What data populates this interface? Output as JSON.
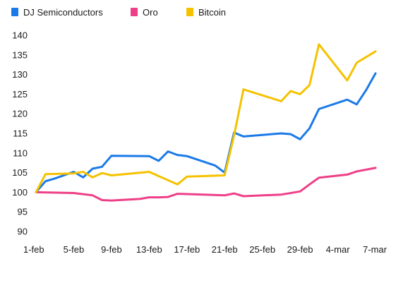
{
  "chart_data": {
    "type": "line",
    "grid": false,
    "legend_position": "top-left",
    "ylim": [
      90,
      140
    ],
    "y_ticks": [
      90,
      95,
      100,
      105,
      110,
      115,
      120,
      125,
      130,
      135,
      140
    ],
    "x_ticks": [
      "1-feb",
      "5-feb",
      "9-feb",
      "13-feb",
      "17-feb",
      "21-feb",
      "25-feb",
      "29-feb",
      "4-mar",
      "7-mar"
    ],
    "series": [
      {
        "name": "DJ Semiconductors",
        "color": "#1a7ae8",
        "points": [
          [
            "1-feb",
            100.0
          ],
          [
            "2-feb",
            102.8
          ],
          [
            "3-feb",
            103.5
          ],
          [
            "5-feb",
            105.2
          ],
          [
            "6-feb",
            103.8
          ],
          [
            "7-feb",
            106.0
          ],
          [
            "8-feb",
            106.5
          ],
          [
            "9-feb",
            109.3
          ],
          [
            "13-feb",
            109.2
          ],
          [
            "14-feb",
            108.0
          ],
          [
            "15-feb",
            110.4
          ],
          [
            "16-feb",
            109.5
          ],
          [
            "17-feb",
            109.2
          ],
          [
            "20-feb",
            106.8
          ],
          [
            "21-feb",
            105.0
          ],
          [
            "22-feb",
            115.2
          ],
          [
            "23-feb",
            114.2
          ],
          [
            "27-feb",
            115.0
          ],
          [
            "28-feb",
            114.8
          ],
          [
            "29-feb",
            113.5
          ],
          [
            "1-mar",
            116.3
          ],
          [
            "2-mar",
            121.2
          ],
          [
            "5-mar",
            123.6
          ],
          [
            "6-mar",
            122.4
          ],
          [
            "7-mar",
            126.0
          ],
          [
            "8-mar",
            130.3
          ]
        ]
      },
      {
        "name": "Oro",
        "color": "#ee3f88",
        "points": [
          [
            "1-feb",
            100.0
          ],
          [
            "5-feb",
            99.8
          ],
          [
            "7-feb",
            99.2
          ],
          [
            "8-feb",
            98.0
          ],
          [
            "9-feb",
            97.9
          ],
          [
            "12-feb",
            98.3
          ],
          [
            "13-feb",
            98.7
          ],
          [
            "14-feb",
            98.7
          ],
          [
            "15-feb",
            98.8
          ],
          [
            "16-feb",
            99.6
          ],
          [
            "21-feb",
            99.2
          ],
          [
            "22-feb",
            99.7
          ],
          [
            "23-feb",
            99.0
          ],
          [
            "27-feb",
            99.4
          ],
          [
            "29-feb",
            100.2
          ],
          [
            "1-mar",
            102.0
          ],
          [
            "2-mar",
            103.7
          ],
          [
            "5-mar",
            104.5
          ],
          [
            "6-mar",
            105.3
          ],
          [
            "8-mar",
            106.2
          ]
        ]
      },
      {
        "name": "Bitcoin",
        "color": "#f5c200",
        "points": [
          [
            "1-feb",
            100.0
          ],
          [
            "2-feb",
            104.6
          ],
          [
            "5-feb",
            104.8
          ],
          [
            "6-feb",
            105.2
          ],
          [
            "7-feb",
            103.8
          ],
          [
            "8-feb",
            104.9
          ],
          [
            "9-feb",
            104.3
          ],
          [
            "13-feb",
            105.2
          ],
          [
            "16-feb",
            102.0
          ],
          [
            "17-feb",
            104.0
          ],
          [
            "21-feb",
            104.3
          ],
          [
            "22-feb",
            114.5
          ],
          [
            "23-feb",
            126.2
          ],
          [
            "27-feb",
            123.2
          ],
          [
            "28-feb",
            125.8
          ],
          [
            "29-feb",
            125.0
          ],
          [
            "1-mar",
            127.3
          ],
          [
            "2-mar",
            137.7
          ],
          [
            "5-mar",
            128.5
          ],
          [
            "6-mar",
            133.0
          ],
          [
            "8-mar",
            135.9
          ]
        ]
      }
    ]
  }
}
